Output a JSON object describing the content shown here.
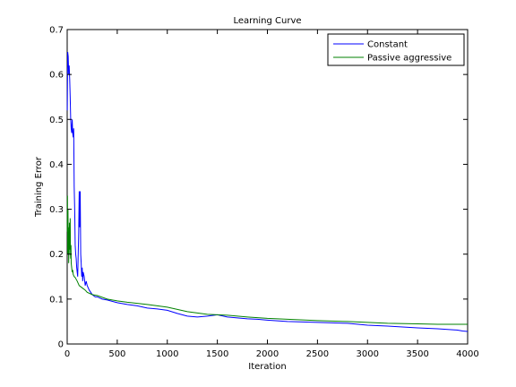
{
  "chart_data": {
    "type": "line",
    "title": "Learning Curve",
    "xlabel": "Iteration",
    "ylabel": "Training Error",
    "xlim": [
      0,
      4000
    ],
    "ylim": [
      0,
      0.7
    ],
    "xticks": [
      0,
      500,
      1000,
      1500,
      2000,
      2500,
      3000,
      3500,
      4000
    ],
    "yticks": [
      0,
      0.1,
      0.2,
      0.3,
      0.4,
      0.5,
      0.6,
      0.7
    ],
    "xtick_labels": [
      "0",
      "500",
      "1000",
      "1500",
      "2000",
      "2500",
      "3000",
      "3500",
      "4000"
    ],
    "ytick_labels": [
      "0",
      "0.1",
      "0.2",
      "0.3",
      "0.4",
      "0.5",
      "0.6",
      "0.7"
    ],
    "grid": false,
    "legend_position": "top-right",
    "series": [
      {
        "name": "Constant",
        "color": "#0000ff",
        "x": [
          1,
          5,
          10,
          15,
          20,
          25,
          30,
          35,
          40,
          45,
          50,
          55,
          60,
          65,
          70,
          75,
          80,
          85,
          90,
          95,
          100,
          105,
          110,
          115,
          120,
          125,
          130,
          135,
          140,
          145,
          150,
          155,
          160,
          170,
          180,
          190,
          200,
          220,
          250,
          280,
          300,
          350,
          400,
          450,
          500,
          600,
          700,
          800,
          900,
          1000,
          1100,
          1200,
          1300,
          1400,
          1500,
          1600,
          1700,
          1800,
          1900,
          2000,
          2200,
          2500,
          2800,
          3000,
          3200,
          3500,
          3700,
          3900,
          3950,
          4000
        ],
        "y": [
          0.52,
          0.65,
          0.64,
          0.6,
          0.62,
          0.59,
          0.55,
          0.5,
          0.48,
          0.47,
          0.5,
          0.47,
          0.46,
          0.48,
          0.35,
          0.3,
          0.22,
          0.2,
          0.19,
          0.17,
          0.16,
          0.15,
          0.2,
          0.25,
          0.34,
          0.26,
          0.34,
          0.2,
          0.18,
          0.15,
          0.17,
          0.14,
          0.16,
          0.15,
          0.13,
          0.14,
          0.13,
          0.12,
          0.11,
          0.105,
          0.105,
          0.1,
          0.098,
          0.095,
          0.092,
          0.088,
          0.085,
          0.08,
          0.078,
          0.075,
          0.068,
          0.062,
          0.06,
          0.062,
          0.065,
          0.06,
          0.058,
          0.056,
          0.055,
          0.053,
          0.05,
          0.048,
          0.046,
          0.042,
          0.04,
          0.036,
          0.034,
          0.031,
          0.029,
          0.028
        ]
      },
      {
        "name": "Passive aggressive",
        "color": "#008000",
        "x": [
          1,
          3,
          5,
          8,
          10,
          12,
          15,
          18,
          20,
          22,
          25,
          28,
          30,
          33,
          35,
          38,
          40,
          45,
          50,
          55,
          60,
          70,
          80,
          100,
          120,
          150,
          180,
          200,
          250,
          300,
          400,
          500,
          600,
          800,
          1000,
          1200,
          1400,
          1600,
          1800,
          2000,
          2200,
          2500,
          2800,
          3000,
          3200,
          3500,
          3700,
          4000
        ],
        "y": [
          0.25,
          0.33,
          0.2,
          0.3,
          0.23,
          0.26,
          0.18,
          0.22,
          0.2,
          0.27,
          0.21,
          0.22,
          0.28,
          0.2,
          0.19,
          0.22,
          0.18,
          0.17,
          0.16,
          0.165,
          0.155,
          0.15,
          0.148,
          0.14,
          0.13,
          0.125,
          0.12,
          0.115,
          0.11,
          0.108,
          0.1,
          0.096,
          0.093,
          0.088,
          0.082,
          0.072,
          0.066,
          0.064,
          0.06,
          0.057,
          0.055,
          0.052,
          0.05,
          0.048,
          0.046,
          0.045,
          0.044,
          0.044
        ]
      }
    ]
  }
}
